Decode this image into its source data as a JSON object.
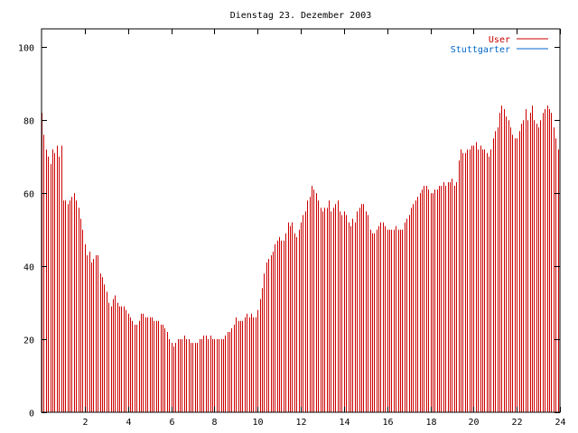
{
  "chart_data": {
    "type": "bar",
    "title": "Dienstag 23. Dezember 2003",
    "xlabel": "",
    "ylabel": "",
    "xlim": [
      0,
      24
    ],
    "ylim": [
      0,
      105
    ],
    "xticks": [
      2,
      4,
      6,
      8,
      10,
      12,
      14,
      16,
      18,
      20,
      22,
      24
    ],
    "yticks": [
      0,
      20,
      40,
      60,
      80,
      100
    ],
    "xtick_labels": [
      "2",
      "4",
      "6",
      "8",
      "10",
      "12",
      "14",
      "16",
      "18",
      "20",
      "22",
      "24"
    ],
    "ytick_labels": [
      "0",
      "20",
      "40",
      "60",
      "80",
      "100"
    ],
    "grid": false,
    "legend_position": "top-right",
    "series": [
      {
        "name": "User",
        "color": "#cc0000",
        "x": [
          0.0,
          0.1,
          0.2,
          0.3,
          0.4,
          0.5,
          0.6,
          0.7,
          0.8,
          0.9,
          1.0,
          1.1,
          1.2,
          1.3,
          1.4,
          1.5,
          1.6,
          1.7,
          1.8,
          1.9,
          2.0,
          2.1,
          2.2,
          2.3,
          2.4,
          2.5,
          2.6,
          2.7,
          2.8,
          2.9,
          3.0,
          3.1,
          3.2,
          3.3,
          3.4,
          3.5,
          3.6,
          3.7,
          3.8,
          3.9,
          4.0,
          4.1,
          4.2,
          4.3,
          4.4,
          4.5,
          4.6,
          4.7,
          4.8,
          4.9,
          5.0,
          5.1,
          5.2,
          5.3,
          5.4,
          5.5,
          5.6,
          5.7,
          5.8,
          5.9,
          6.0,
          6.1,
          6.2,
          6.3,
          6.4,
          6.5,
          6.6,
          6.7,
          6.8,
          6.9,
          7.0,
          7.1,
          7.2,
          7.3,
          7.4,
          7.5,
          7.6,
          7.7,
          7.8,
          7.9,
          8.0,
          8.1,
          8.2,
          8.3,
          8.4,
          8.5,
          8.6,
          8.7,
          8.8,
          8.9,
          9.0,
          9.1,
          9.2,
          9.3,
          9.4,
          9.5,
          9.6,
          9.7,
          9.8,
          9.9,
          10.0,
          10.1,
          10.2,
          10.3,
          10.4,
          10.5,
          10.6,
          10.7,
          10.8,
          10.9,
          11.0,
          11.1,
          11.2,
          11.3,
          11.4,
          11.5,
          11.6,
          11.7,
          11.8,
          11.9,
          12.0,
          12.1,
          12.2,
          12.3,
          12.4,
          12.5,
          12.6,
          12.7,
          12.8,
          12.9,
          13.0,
          13.1,
          13.2,
          13.3,
          13.4,
          13.5,
          13.6,
          13.7,
          13.8,
          13.9,
          14.0,
          14.1,
          14.2,
          14.3,
          14.4,
          14.5,
          14.6,
          14.7,
          14.8,
          14.9,
          15.0,
          15.1,
          15.2,
          15.3,
          15.4,
          15.5,
          15.6,
          15.7,
          15.8,
          15.9,
          16.0,
          16.1,
          16.2,
          16.3,
          16.4,
          16.5,
          16.6,
          16.7,
          16.8,
          16.9,
          17.0,
          17.1,
          17.2,
          17.3,
          17.4,
          17.5,
          17.6,
          17.7,
          17.8,
          17.9,
          18.0,
          18.1,
          18.2,
          18.3,
          18.4,
          18.5,
          18.6,
          18.7,
          18.8,
          18.9,
          19.0,
          19.1,
          19.2,
          19.3,
          19.4,
          19.5,
          19.6,
          19.7,
          19.8,
          19.9,
          20.0,
          20.1,
          20.2,
          20.3,
          20.4,
          20.5,
          20.6,
          20.7,
          20.8,
          20.9,
          21.0,
          21.1,
          21.2,
          21.3,
          21.4,
          21.5,
          21.6,
          21.7,
          21.8,
          21.9,
          22.0,
          22.1,
          22.2,
          22.3,
          22.4,
          22.5,
          22.6,
          22.7,
          22.8,
          22.9,
          23.0,
          23.1,
          23.2,
          23.3,
          23.4,
          23.5,
          23.6,
          23.7,
          23.8,
          23.9
        ],
        "values": [
          82,
          76,
          72,
          70,
          68,
          72,
          71,
          73,
          70,
          73,
          58,
          58,
          57,
          58,
          59,
          60,
          58,
          56,
          53,
          50,
          46,
          43,
          44,
          41,
          42,
          43,
          43,
          38,
          37,
          35,
          33,
          30,
          29,
          31,
          32,
          30,
          29,
          29,
          29,
          28,
          27,
          26,
          25,
          24,
          24,
          25,
          27,
          27,
          26,
          26,
          26,
          26,
          25,
          25,
          25,
          24,
          24,
          23,
          22,
          20,
          19,
          18,
          19,
          20,
          20,
          20,
          21,
          20,
          20,
          19,
          19,
          19,
          19,
          20,
          20,
          21,
          21,
          20,
          21,
          20,
          20,
          20,
          20,
          20,
          20,
          21,
          22,
          22,
          23,
          24,
          26,
          25,
          25,
          25,
          26,
          27,
          26,
          27,
          26,
          26,
          28,
          31,
          34,
          38,
          41,
          42,
          43,
          44,
          46,
          47,
          48,
          47,
          47,
          49,
          52,
          51,
          52,
          49,
          48,
          50,
          52,
          54,
          55,
          58,
          59,
          62,
          61,
          60,
          58,
          56,
          55,
          56,
          56,
          58,
          55,
          56,
          57,
          58,
          55,
          54,
          55,
          54,
          52,
          51,
          53,
          52,
          55,
          56,
          57,
          57,
          55,
          54,
          50,
          49,
          49,
          50,
          51,
          52,
          52,
          51,
          50,
          50,
          50,
          50,
          51,
          50,
          50,
          50,
          52,
          53,
          54,
          56,
          57,
          58,
          59,
          60,
          61,
          62,
          62,
          61,
          60,
          60,
          61,
          61,
          62,
          62,
          63,
          62,
          63,
          63,
          64,
          62,
          63,
          69,
          72,
          71,
          71,
          72,
          72,
          73,
          73,
          74,
          72,
          73,
          72,
          72,
          71,
          70,
          72,
          75,
          77,
          78,
          82,
          84,
          83,
          81,
          80,
          78,
          76,
          75,
          75,
          77,
          79,
          80,
          83,
          80,
          82,
          84,
          80,
          79,
          78,
          80,
          82,
          83,
          84,
          83,
          82,
          78,
          75,
          72
        ]
      },
      {
        "name": "Stuttgarter",
        "color": "#0066cc",
        "x": [],
        "values": []
      }
    ]
  }
}
